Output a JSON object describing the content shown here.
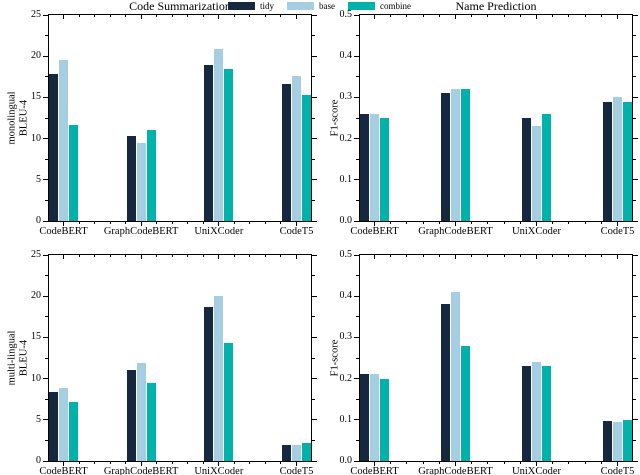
{
  "figure": {
    "left_title": "Code Summarization",
    "right_title": "Name Prediction"
  },
  "legend": {
    "items": [
      {
        "label": "tidy",
        "color": "#152840"
      },
      {
        "label": "base",
        "color": "#a6cee3"
      },
      {
        "label": "combine",
        "color": "#00b2aa"
      }
    ]
  },
  "categories": [
    "CodeBERT",
    "GraphCodeBERT",
    "UniXCoder",
    "CodeT5"
  ],
  "chart_data": [
    {
      "type": "bar",
      "position": "top-left",
      "column_title": "Code Summarization",
      "ylabel": "monolingual\nBLEU-4",
      "ylim": [
        0,
        25
      ],
      "ytick_values": [
        0,
        5,
        10,
        15,
        20,
        25
      ],
      "ytick_labels": [
        "0",
        "5",
        "10",
        "15",
        "20",
        "25"
      ],
      "categories": [
        "CodeBERT",
        "GraphCodeBERT",
        "UniXCoder",
        "CodeT5"
      ],
      "legend_position": "top-center-of-figure",
      "grid": false,
      "series": [
        {
          "name": "tidy",
          "values": [
            17.9,
            10.3,
            18.9,
            16.6
          ]
        },
        {
          "name": "base",
          "values": [
            19.5,
            9.5,
            20.9,
            17.6
          ]
        },
        {
          "name": "combine",
          "values": [
            11.7,
            11.0,
            18.4,
            15.3
          ]
        }
      ]
    },
    {
      "type": "bar",
      "position": "top-right",
      "column_title": "Name Prediction",
      "ylabel": "F1-score",
      "ylim": [
        0,
        0.5
      ],
      "ytick_values": [
        0,
        0.1,
        0.2,
        0.3,
        0.4,
        0.5
      ],
      "ytick_labels": [
        "0.0",
        "0.1",
        "0.2",
        "0.3",
        "0.4",
        "0.5"
      ],
      "categories": [
        "CodeBERT",
        "GraphCodeBERT",
        "UniXCoder",
        "CodeT5"
      ],
      "grid": false,
      "series": [
        {
          "name": "tidy",
          "values": [
            0.26,
            0.31,
            0.25,
            0.29
          ]
        },
        {
          "name": "base",
          "values": [
            0.26,
            0.32,
            0.23,
            0.3
          ]
        },
        {
          "name": "combine",
          "values": [
            0.25,
            0.32,
            0.26,
            0.29
          ]
        }
      ]
    },
    {
      "type": "bar",
      "position": "bottom-left",
      "ylabel": "multi-lingual\nBLEU-4",
      "ylim": [
        0,
        25
      ],
      "ytick_values": [
        0,
        5,
        10,
        15,
        20,
        25
      ],
      "ytick_labels": [
        "0",
        "5",
        "10",
        "15",
        "20",
        "25"
      ],
      "categories": [
        "CodeBERT",
        "GraphCodeBERT",
        "UniXCoder",
        "CodeT5"
      ],
      "grid": false,
      "series": [
        {
          "name": "tidy",
          "values": [
            8.4,
            11.1,
            18.7,
            2.0
          ]
        },
        {
          "name": "base",
          "values": [
            8.9,
            11.9,
            20.0,
            1.9
          ]
        },
        {
          "name": "combine",
          "values": [
            7.2,
            9.5,
            14.3,
            2.2
          ]
        }
      ]
    },
    {
      "type": "bar",
      "position": "bottom-right",
      "ylabel": "F1-score",
      "ylim": [
        0,
        0.5
      ],
      "ytick_values": [
        0,
        0.1,
        0.2,
        0.3,
        0.4,
        0.5
      ],
      "ytick_labels": [
        "0.0",
        "0.1",
        "0.2",
        "0.3",
        "0.4",
        "0.5"
      ],
      "categories": [
        "CodeBERT",
        "GraphCodeBERT",
        "UniXCoder",
        "CodeT5"
      ],
      "grid": false,
      "series": [
        {
          "name": "tidy",
          "values": [
            0.21,
            0.38,
            0.23,
            0.098
          ]
        },
        {
          "name": "base",
          "values": [
            0.21,
            0.41,
            0.24,
            0.095
          ]
        },
        {
          "name": "combine",
          "values": [
            0.2,
            0.28,
            0.23,
            0.1
          ]
        }
      ]
    }
  ]
}
